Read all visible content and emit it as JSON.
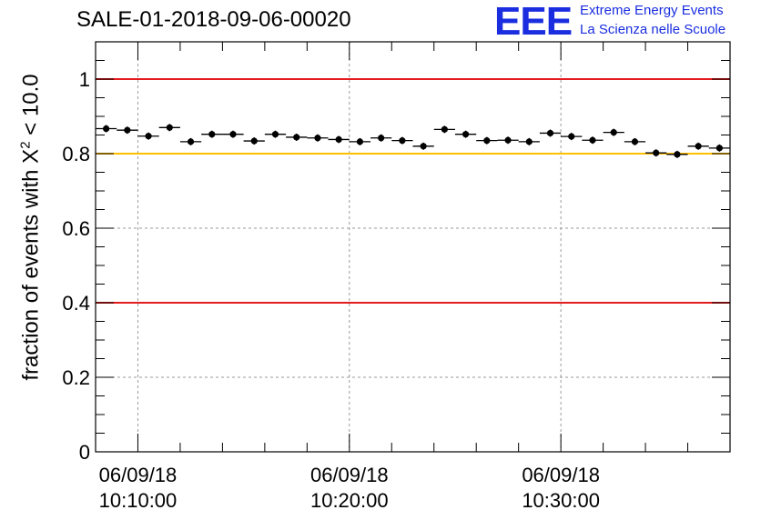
{
  "chart_data": {
    "type": "scatter",
    "title": "SALE-01-2018-09-06-00020",
    "logo": {
      "mark": "EEE",
      "line1": "Extreme Energy Events",
      "line2": "La Scienza nelle Scuole"
    },
    "ylabel_prefix": "fraction of events with X",
    "ylabel_sup": "2",
    "ylabel_suffix": " < 10.0",
    "ylim": [
      0,
      1.1
    ],
    "yticks": [
      {
        "value": 0,
        "label": "0"
      },
      {
        "value": 0.2,
        "label": "0.2"
      },
      {
        "value": 0.4,
        "label": "0.4"
      },
      {
        "value": 0.6,
        "label": "0.6"
      },
      {
        "value": 0.8,
        "label": "0.8"
      },
      {
        "value": 1,
        "label": "1"
      }
    ],
    "x_range": [
      "10:08:00",
      "10:38:00"
    ],
    "xticks": [
      {
        "time": "10:10:00",
        "date": "06/09/18",
        "label": "10:10:00"
      },
      {
        "time": "10:20:00",
        "date": "06/09/18",
        "label": "10:20:00"
      },
      {
        "time": "10:30:00",
        "date": "06/09/18",
        "label": "10:30:00"
      }
    ],
    "grid": true,
    "reference_lines": [
      {
        "y": 1.0,
        "color": "#e41a1c"
      },
      {
        "y": 0.8,
        "color": "#ffc000"
      },
      {
        "y": 0.4,
        "color": "#e41a1c"
      }
    ],
    "bin_width_minutes": 1,
    "series": [
      {
        "x": [
          "10:08:00",
          "10:09:00",
          "10:10:00",
          "10:11:00",
          "10:12:00",
          "10:13:00",
          "10:14:00",
          "10:15:00",
          "10:16:00",
          "10:17:00",
          "10:18:00",
          "10:19:00",
          "10:20:00",
          "10:21:00",
          "10:22:00",
          "10:23:00",
          "10:24:00",
          "10:25:00",
          "10:26:00",
          "10:27:00",
          "10:28:00",
          "10:29:00",
          "10:30:00",
          "10:31:00",
          "10:32:00",
          "10:33:00",
          "10:34:00",
          "10:35:00",
          "10:36:00",
          "10:37:00"
        ],
        "y": [
          0.867,
          0.863,
          0.847,
          0.87,
          0.832,
          0.852,
          0.852,
          0.834,
          0.852,
          0.844,
          0.842,
          0.838,
          0.832,
          0.842,
          0.835,
          0.82,
          0.865,
          0.852,
          0.835,
          0.836,
          0.832,
          0.855,
          0.846,
          0.836,
          0.857,
          0.832,
          0.802,
          0.798,
          0.82,
          0.815
        ]
      }
    ]
  }
}
